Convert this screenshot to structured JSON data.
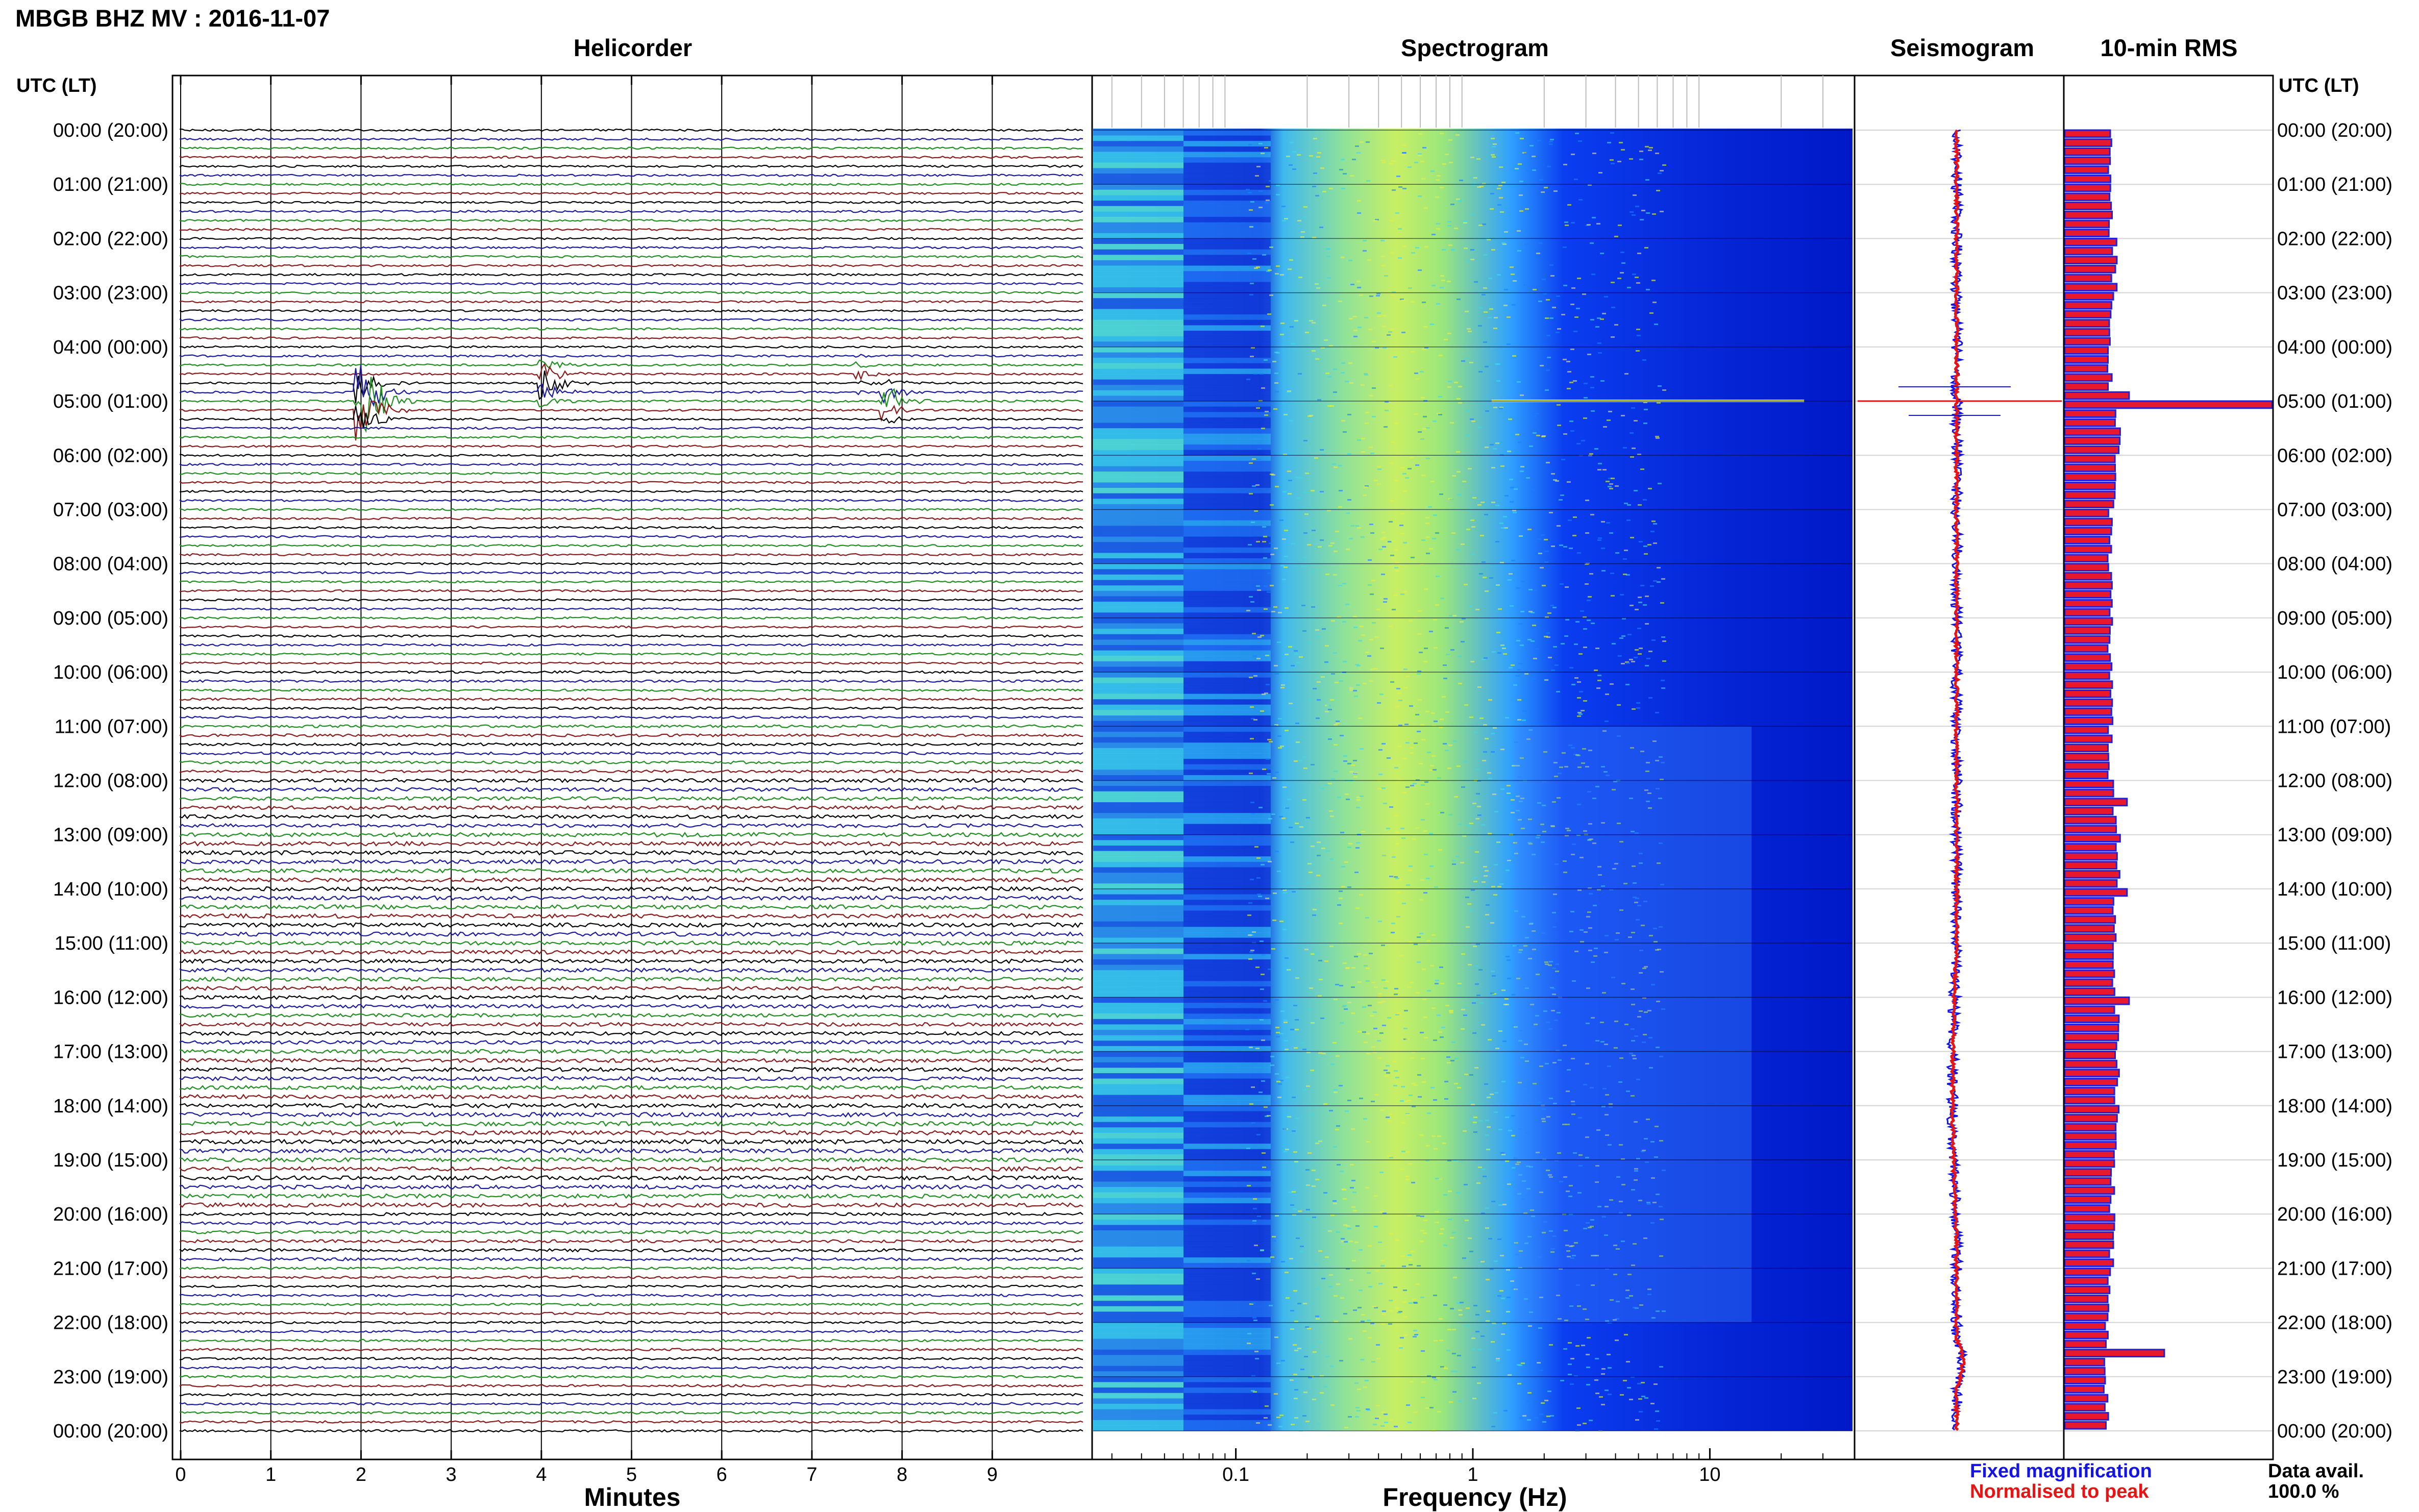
{
  "header": {
    "title": "MBGB BHZ MV : 2016-11-07"
  },
  "left_axis_label": "UTC (LT)",
  "right_axis_label": "UTC (LT)",
  "hour_labels": [
    "00:00 (20:00)",
    "01:00 (21:00)",
    "02:00 (22:00)",
    "03:00 (23:00)",
    "04:00 (00:00)",
    "05:00 (01:00)",
    "06:00 (02:00)",
    "07:00 (03:00)",
    "08:00 (04:00)",
    "09:00 (05:00)",
    "10:00 (06:00)",
    "11:00 (07:00)",
    "12:00 (08:00)",
    "13:00 (09:00)",
    "14:00 (10:00)",
    "15:00 (11:00)",
    "16:00 (12:00)",
    "17:00 (13:00)",
    "18:00 (14:00)",
    "19:00 (15:00)",
    "20:00 (16:00)",
    "21:00 (17:00)",
    "22:00 (18:00)",
    "23:00 (19:00)",
    "00:00 (20:00)"
  ],
  "legend": {
    "fixed": "Fixed magnification",
    "fixed_color": "#1414e6",
    "normalised": "Normalised to peak",
    "normalised_color": "#e61414"
  },
  "data_avail": {
    "label": "Data avail.",
    "value": "100.0 %"
  },
  "colors": {
    "trace_cycle": [
      "#000000",
      "#1a1aa0",
      "#1f8f1f",
      "#8b1a1a"
    ],
    "rms_fill": "#e8192c",
    "rms_edge": "#2020e0"
  },
  "chart_data": [
    {
      "type": "line",
      "title": "Helicorder",
      "xlabel": "Minutes",
      "xlim": [
        0,
        10
      ],
      "xticks": [
        "0",
        "1",
        "2",
        "3",
        "4",
        "5",
        "6",
        "7",
        "8",
        "9"
      ],
      "rows_per_hour": 6,
      "events": [
        {
          "hour": 5.0,
          "minute": 1.95,
          "amp": 1.9
        },
        {
          "hour": 4.67,
          "minute": 4.0,
          "amp": 0.55
        },
        {
          "hour": 4.5,
          "minute": 7.5,
          "amp": 0.15
        },
        {
          "hour": 5.0,
          "minute": 7.8,
          "amp": 0.5
        }
      ],
      "noise_by_hour": [
        0.9,
        0.9,
        0.9,
        0.9,
        0.9,
        0.9,
        0.9,
        0.9,
        0.9,
        0.9,
        1.0,
        1.2,
        1.6,
        1.8,
        1.8,
        1.7,
        1.6,
        1.7,
        1.9,
        1.8,
        1.3,
        1.0,
        1.0,
        1.0
      ]
    },
    {
      "type": "heatmap",
      "title": "Spectrogram",
      "xlabel": "Frequency (Hz)",
      "xscale": "log",
      "xlim": [
        0.025,
        40
      ],
      "xticks": [
        "0.1",
        "1",
        "10"
      ],
      "y": "hour (UTC)",
      "colormap": [
        "#0000a0",
        "#0010ff",
        "#1e90ff",
        "#3fe0e0",
        "#aaf050",
        "#f0f03c"
      ]
    },
    {
      "type": "line",
      "title": "Seismogram",
      "series": [
        {
          "name": "Fixed magnification",
          "color": "#1414e6"
        },
        {
          "name": "Normalised to peak",
          "color": "#e61414"
        }
      ],
      "spikes_hour": [
        5.0
      ]
    },
    {
      "type": "bar",
      "title": "10-min RMS",
      "orientation": "horizontal",
      "note": "relative RMS per 10-minute window, 0-1 of panel width",
      "hourly_level": [
        0.22,
        0.22,
        0.24,
        0.23,
        0.22,
        0.26,
        0.24,
        0.22,
        0.22,
        0.22,
        0.23,
        0.22,
        0.24,
        0.26,
        0.24,
        0.24,
        0.25,
        0.25,
        0.25,
        0.23,
        0.23,
        0.21,
        0.2,
        0.2
      ],
      "peaks": [
        {
          "hour": 4.83,
          "value": 0.31
        },
        {
          "hour": 5.0,
          "value": 1.0
        },
        {
          "hour": 12.33,
          "value": 0.3
        },
        {
          "hour": 14.0,
          "value": 0.3
        },
        {
          "hour": 16.0,
          "value": 0.31
        },
        {
          "hour": 22.5,
          "value": 0.48
        }
      ]
    }
  ]
}
